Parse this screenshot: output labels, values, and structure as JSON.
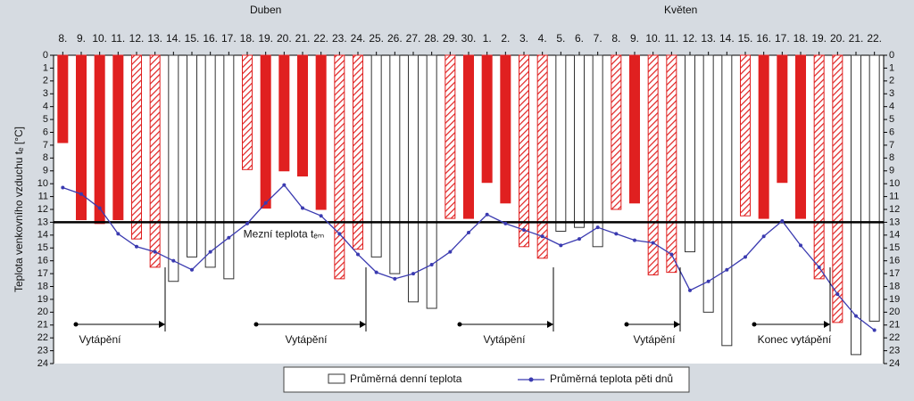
{
  "chart_data": {
    "type": "bar",
    "y_label": "Teplota venkovního vzduchu tₑ [°C]",
    "x_groups": [
      "Duben",
      "Květen"
    ],
    "categories": [
      "8.",
      "9.",
      "10.",
      "11.",
      "12.",
      "13.",
      "14.",
      "15.",
      "16.",
      "17.",
      "18.",
      "19.",
      "20.",
      "21.",
      "22.",
      "23.",
      "24.",
      "25.",
      "26.",
      "27.",
      "28.",
      "29.",
      "30.",
      "1.",
      "2.",
      "3.",
      "4.",
      "5.",
      "6.",
      "7.",
      "8.",
      "9.",
      "10.",
      "11.",
      "12.",
      "13.",
      "14.",
      "15.",
      "16.",
      "17.",
      "18.",
      "19.",
      "20.",
      "21.",
      "22."
    ],
    "ylim": [
      0,
      24
    ],
    "y_inverted": true,
    "yticks": [
      0,
      1,
      2,
      3,
      4,
      5,
      6,
      7,
      8,
      9,
      10,
      11,
      12,
      13,
      14,
      15,
      16,
      17,
      18,
      19,
      20,
      21,
      22,
      23,
      24
    ],
    "series": [
      {
        "name": "Průměrná denní teplota",
        "kind": "bar",
        "color": "#e02020",
        "fills": [
          "solid",
          "solid",
          "solid",
          "solid",
          "hatched",
          "hatched",
          "none",
          "none",
          "none",
          "none",
          "hatched",
          "solid",
          "solid",
          "solid",
          "solid",
          "hatched",
          "hatched",
          "none",
          "none",
          "none",
          "none",
          "hatched",
          "solid",
          "solid",
          "solid",
          "hatched",
          "hatched",
          "none",
          "none",
          "none",
          "hatched",
          "solid",
          "hatched",
          "hatched",
          "none",
          "none",
          "none",
          "hatched",
          "solid",
          "solid",
          "solid",
          "hatched",
          "hatched",
          "none",
          "none"
        ],
        "values": [
          6.8,
          12.8,
          13.1,
          12.8,
          14.3,
          16.5,
          17.6,
          15.7,
          16.5,
          17.4,
          8.9,
          11.9,
          9.0,
          9.4,
          12.0,
          17.4,
          15.1,
          15.7,
          17.0,
          19.2,
          19.7,
          12.7,
          12.7,
          9.9,
          11.5,
          14.9,
          15.8,
          13.7,
          13.4,
          14.9,
          12.0,
          11.5,
          17.1,
          16.9,
          15.3,
          20.0,
          22.6,
          12.5,
          12.7,
          9.9,
          12.7,
          17.4,
          20.8,
          23.3,
          20.7
        ]
      },
      {
        "name": "Průměrná teplota pěti dnů",
        "kind": "line",
        "color": "#3a3ab0",
        "values": [
          10.3,
          10.8,
          11.9,
          13.9,
          14.9,
          15.3,
          16.0,
          16.7,
          15.3,
          14.2,
          13.1,
          11.5,
          10.1,
          11.9,
          12.5,
          13.9,
          15.5,
          16.9,
          17.4,
          17.0,
          16.3,
          15.3,
          13.8,
          12.4,
          13.1,
          13.6,
          14.1,
          14.8,
          14.3,
          13.4,
          13.9,
          14.4,
          14.6,
          15.5,
          18.3,
          17.6,
          16.7,
          15.7,
          14.1,
          12.9,
          14.8,
          16.5,
          18.6,
          20.3,
          21.4
        ]
      }
    ],
    "threshold": {
      "value": 13,
      "label": "Mezní teplota tₑₘ"
    },
    "annotations": [
      "Vytápění",
      "Vytápění",
      "Vytápění",
      "Vytápění",
      "Konec vytápění"
    ]
  }
}
